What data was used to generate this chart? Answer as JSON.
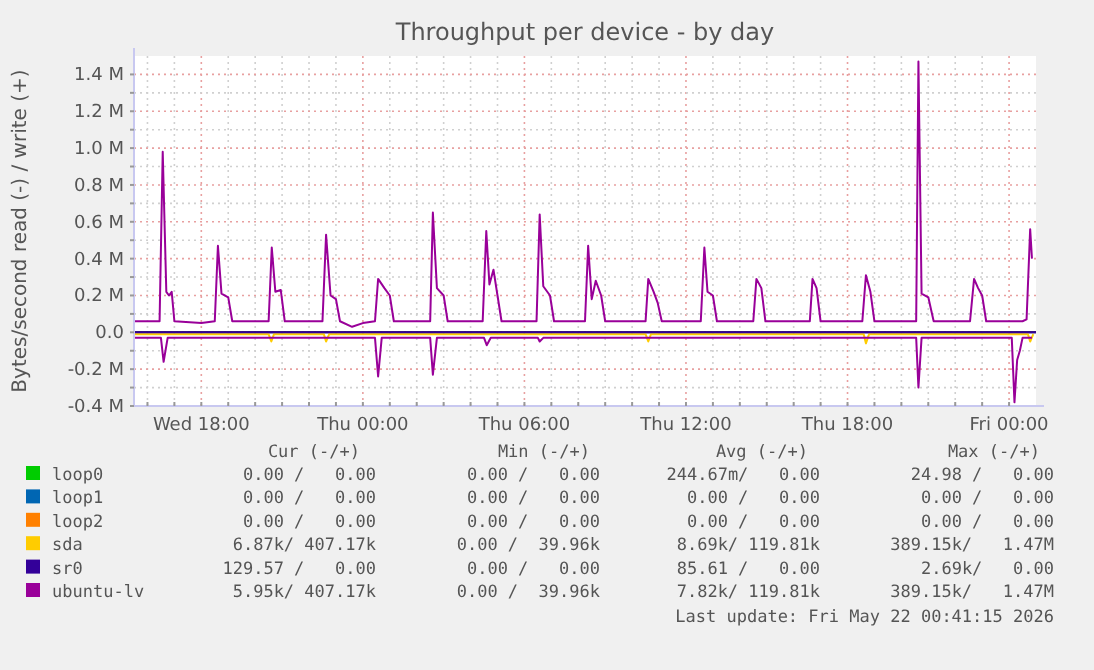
{
  "chart_data": {
    "type": "line",
    "title": "Throughput per device - by day",
    "ylabel": "Bytes/second read (-) / write (+)",
    "legend": "bottom",
    "grid": true,
    "marker": "none",
    "line_style": "solid",
    "xlim": [
      "2026-05-20T15:30",
      "2026-05-22T01:00"
    ],
    "ylim": [
      -0.4,
      1.5
    ],
    "xticks": [
      {
        "value": "2026-05-20T16:00",
        "label": null
      },
      {
        "value": "2026-05-20T17:00",
        "label": null
      },
      {
        "value": "2026-05-20T18:00",
        "label": "Wed 18:00"
      },
      {
        "value": "2026-05-20T19:00",
        "label": null
      },
      {
        "value": "2026-05-20T20:00",
        "label": null
      },
      {
        "value": "2026-05-20T21:00",
        "label": null
      },
      {
        "value": "2026-05-20T22:00",
        "label": null
      },
      {
        "value": "2026-05-20T23:00",
        "label": null
      },
      {
        "value": "2026-05-21T00:00",
        "label": "Thu 00:00"
      },
      {
        "value": "2026-05-21T01:00",
        "label": null
      },
      {
        "value": "2026-05-21T02:00",
        "label": null
      },
      {
        "value": "2026-05-21T03:00",
        "label": null
      },
      {
        "value": "2026-05-21T04:00",
        "label": null
      },
      {
        "value": "2026-05-21T05:00",
        "label": null
      },
      {
        "value": "2026-05-21T06:00",
        "label": "Thu 06:00"
      },
      {
        "value": "2026-05-21T07:00",
        "label": null
      },
      {
        "value": "2026-05-21T08:00",
        "label": null
      },
      {
        "value": "2026-05-21T09:00",
        "label": null
      },
      {
        "value": "2026-05-21T10:00",
        "label": null
      },
      {
        "value": "2026-05-21T11:00",
        "label": null
      },
      {
        "value": "2026-05-21T12:00",
        "label": "Thu 12:00"
      },
      {
        "value": "2026-05-21T13:00",
        "label": null
      },
      {
        "value": "2026-05-21T14:00",
        "label": null
      },
      {
        "value": "2026-05-21T15:00",
        "label": null
      },
      {
        "value": "2026-05-21T16:00",
        "label": null
      },
      {
        "value": "2026-05-21T17:00",
        "label": null
      },
      {
        "value": "2026-05-21T18:00",
        "label": "Thu 18:00"
      },
      {
        "value": "2026-05-21T19:00",
        "label": null
      },
      {
        "value": "2026-05-21T20:00",
        "label": null
      },
      {
        "value": "2026-05-21T21:00",
        "label": null
      },
      {
        "value": "2026-05-21T22:00",
        "label": null
      },
      {
        "value": "2026-05-21T23:00",
        "label": null
      },
      {
        "value": "2026-05-22T00:00",
        "label": "Fri 00:00"
      }
    ],
    "yticks": [
      {
        "value": -0.4,
        "label": "-0.4 M"
      },
      {
        "value": -0.3,
        "label": null
      },
      {
        "value": -0.2,
        "label": "-0.2 M"
      },
      {
        "value": -0.1,
        "label": null
      },
      {
        "value": 0,
        "label": "0.0"
      },
      {
        "value": 0.1,
        "label": null
      },
      {
        "value": 0.2,
        "label": "0.2 M"
      },
      {
        "value": 0.3,
        "label": null
      },
      {
        "value": 0.4,
        "label": "0.4 M"
      },
      {
        "value": 0.5,
        "label": null
      },
      {
        "value": 0.6,
        "label": "0.6 M"
      },
      {
        "value": 0.7,
        "label": null
      },
      {
        "value": 0.8,
        "label": "0.8 M"
      },
      {
        "value": 0.9,
        "label": null
      },
      {
        "value": 1.0,
        "label": "1.0 M"
      },
      {
        "value": 1.1,
        "label": null
      },
      {
        "value": 1.2,
        "label": "1.2 M"
      },
      {
        "value": 1.3,
        "label": null
      },
      {
        "value": 1.4,
        "label": "1.4 M"
      }
    ],
    "series": [
      {
        "name": "loop0",
        "color": "#00cc00"
      },
      {
        "name": "loop1",
        "color": "#0066b3"
      },
      {
        "name": "loop2",
        "color": "#ff8000"
      },
      {
        "name": "sda",
        "color": "#ffcc00",
        "x": [
          "2026-05-20T15:30",
          "2026-05-20T20:30",
          "2026-05-20T20:36",
          "2026-05-20T20:42",
          "2026-05-20T22:33",
          "2026-05-20T22:38",
          "2026-05-20T22:45",
          "2026-05-21T10:30",
          "2026-05-21T10:36",
          "2026-05-21T10:42",
          "2026-05-21T18:36",
          "2026-05-21T18:41",
          "2026-05-21T18:48",
          "2026-05-22T00:42",
          "2026-05-22T00:47",
          "2026-05-22T00:54"
        ],
        "values": [
          -0.01,
          -0.01,
          -0.05,
          -0.01,
          -0.01,
          -0.05,
          -0.01,
          -0.01,
          -0.05,
          -0.01,
          -0.01,
          -0.06,
          -0.01,
          -0.01,
          -0.05,
          -0.01
        ]
      },
      {
        "name": "sr0",
        "color": "#330099",
        "x": [
          "2026-05-20T15:30",
          "2026-05-22T01:00"
        ],
        "values": [
          0,
          0
        ]
      },
      {
        "name": "ubuntu-lv",
        "color": "#990099",
        "x": [
          "2026-05-20T15:30",
          "2026-05-20T16:27",
          "2026-05-20T16:34",
          "2026-05-20T16:42",
          "2026-05-20T16:48",
          "2026-05-20T16:54",
          "2026-05-20T17:00",
          "2026-05-20T18:00",
          "2026-05-20T18:30",
          "2026-05-20T18:37",
          "2026-05-20T18:45",
          "2026-05-20T19:00",
          "2026-05-20T19:09",
          "2026-05-20T20:30",
          "2026-05-20T20:37",
          "2026-05-20T20:45",
          "2026-05-20T20:57",
          "2026-05-20T21:06",
          "2026-05-20T22:30",
          "2026-05-20T22:38",
          "2026-05-20T22:48",
          "2026-05-20T23:00",
          "2026-05-20T23:09",
          "2026-05-20T23:36",
          "2026-05-21T00:00",
          "2026-05-21T00:27",
          "2026-05-21T00:34",
          "2026-05-21T00:48",
          "2026-05-21T01:00",
          "2026-05-21T01:09",
          "2026-05-21T02:30",
          "2026-05-21T02:36",
          "2026-05-21T02:45",
          "2026-05-21T03:00",
          "2026-05-21T03:09",
          "2026-05-21T04:27",
          "2026-05-21T04:35",
          "2026-05-21T04:42",
          "2026-05-21T04:51",
          "2026-05-21T05:00",
          "2026-05-21T05:09",
          "2026-05-21T06:27",
          "2026-05-21T06:34",
          "2026-05-21T06:42",
          "2026-05-21T06:57",
          "2026-05-21T07:06",
          "2026-05-21T08:15",
          "2026-05-21T08:22",
          "2026-05-21T08:30",
          "2026-05-21T08:39",
          "2026-05-21T08:51",
          "2026-05-21T09:00",
          "2026-05-21T10:30",
          "2026-05-21T10:36",
          "2026-05-21T10:48",
          "2026-05-21T10:57",
          "2026-05-21T11:06",
          "2026-05-21T12:33",
          "2026-05-21T12:41",
          "2026-05-21T12:48",
          "2026-05-21T13:00",
          "2026-05-21T13:09",
          "2026-05-21T14:30",
          "2026-05-21T14:37",
          "2026-05-21T14:48",
          "2026-05-21T14:57",
          "2026-05-21T16:36",
          "2026-05-21T16:42",
          "2026-05-21T16:51",
          "2026-05-21T17:00",
          "2026-05-21T18:33",
          "2026-05-21T18:41",
          "2026-05-21T18:51",
          "2026-05-21T19:00",
          "2026-05-21T20:33",
          "2026-05-21T20:38",
          "2026-05-21T20:45",
          "2026-05-21T21:00",
          "2026-05-21T21:12",
          "2026-05-21T22:33",
          "2026-05-21T22:42",
          "2026-05-21T22:51",
          "2026-05-21T23:00",
          "2026-05-21T23:09",
          "2026-05-22T00:30",
          "2026-05-22T00:39",
          "2026-05-22T00:47",
          "2026-05-22T00:51"
        ],
        "values": [
          0.06,
          0.06,
          0.98,
          0.22,
          0.2,
          0.22,
          0.06,
          0.05,
          0.06,
          0.47,
          0.21,
          0.19,
          0.06,
          0.06,
          0.46,
          0.22,
          0.23,
          0.06,
          0.06,
          0.53,
          0.2,
          0.18,
          0.06,
          0.03,
          0.05,
          0.06,
          0.29,
          0.24,
          0.2,
          0.06,
          0.06,
          0.65,
          0.24,
          0.2,
          0.06,
          0.06,
          0.55,
          0.26,
          0.34,
          0.2,
          0.06,
          0.06,
          0.64,
          0.25,
          0.2,
          0.06,
          0.06,
          0.47,
          0.18,
          0.28,
          0.2,
          0.06,
          0.06,
          0.29,
          0.22,
          0.16,
          0.06,
          0.06,
          0.46,
          0.22,
          0.2,
          0.06,
          0.06,
          0.29,
          0.24,
          0.06,
          0.06,
          0.29,
          0.24,
          0.06,
          0.06,
          0.31,
          0.22,
          0.06,
          0.06,
          1.47,
          0.21,
          0.19,
          0.06,
          0.06,
          0.29,
          0.24,
          0.2,
          0.06,
          0.06,
          0.07,
          0.56,
          0.4
        ]
      },
      {
        "color": "#990099",
        "x": [
          "2026-05-20T15:30",
          "2026-05-20T16:30",
          "2026-05-20T16:36",
          "2026-05-20T16:45",
          "2026-05-21T00:27",
          "2026-05-21T00:34",
          "2026-05-21T00:42",
          "2026-05-21T02:30",
          "2026-05-21T02:36",
          "2026-05-21T02:45",
          "2026-05-21T04:30",
          "2026-05-21T04:36",
          "2026-05-21T04:45",
          "2026-05-21T06:30",
          "2026-05-21T06:34",
          "2026-05-21T06:42",
          "2026-05-21T20:33",
          "2026-05-21T20:38",
          "2026-05-21T20:45",
          "2026-05-22T00:06",
          "2026-05-22T00:12",
          "2026-05-22T00:18",
          "2026-05-22T00:24",
          "2026-05-22T00:30",
          "2026-05-22T00:51"
        ],
        "values": [
          -0.03,
          -0.03,
          -0.16,
          -0.03,
          -0.03,
          -0.24,
          -0.03,
          -0.03,
          -0.23,
          -0.03,
          -0.03,
          -0.07,
          -0.03,
          -0.03,
          -0.05,
          -0.03,
          -0.03,
          -0.3,
          -0.03,
          -0.03,
          -0.38,
          -0.15,
          -0.1,
          -0.03,
          -0.03
        ]
      }
    ],
    "annotations": [
      "Cur (-/+)",
      "Min (-/+)",
      "Avg (-/+)",
      "Max (-/+)",
      "0.00 /   0.00",
      "0.00 /   0.00",
      "244.67m/   0.00",
      "24.98 /   0.00",
      "0.00 /   0.00",
      "0.00 /   0.00",
      "0.00 /   0.00",
      "0.00 /   0.00",
      "0.00 /   0.00",
      "0.00 /   0.00",
      "0.00 /   0.00",
      "0.00 /   0.00",
      "6.87k/ 407.17k",
      "0.00 /  39.96k",
      "8.69k/ 119.81k",
      "389.15k/   1.47M",
      "129.57 /   0.00",
      "0.00 /   0.00",
      "85.61 /   0.00",
      "2.69k/   0.00",
      "5.95k/ 407.17k",
      "0.00 /  39.96k",
      "7.82k/ 119.81k",
      "389.15k/   1.47M",
      "Last update: Fri May 22 00:41:15 2026"
    ]
  }
}
